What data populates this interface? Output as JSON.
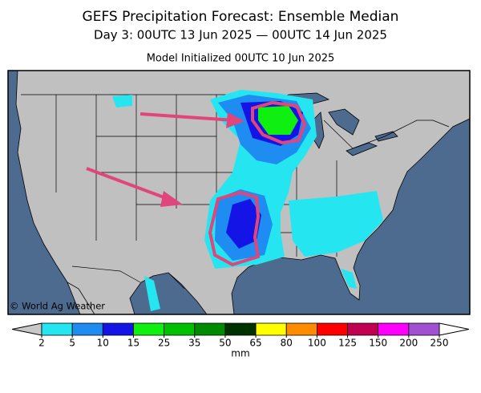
{
  "header": {
    "title": "GEFS Precipitation Forecast: Ensemble Median",
    "subtitle": "Day 3: 00UTC 13 Jun 2025 — 00UTC 14 Jun 2025",
    "init": "Model Initialized 00UTC 10 Jun 2025"
  },
  "map": {
    "credit": "© World Ag Weather"
  },
  "legend": {
    "levels": [
      2,
      5,
      10,
      15,
      25,
      35,
      50,
      65,
      80,
      100,
      125,
      150,
      200,
      250
    ],
    "colors": [
      "#25e6f0",
      "#1e8cf0",
      "#1414e6",
      "#10f010",
      "#00c000",
      "#008a00",
      "#003200",
      "#ffff00",
      "#ff8c00",
      "#ff0000",
      "#c00050",
      "#ff00ff",
      "#a050d0"
    ],
    "below_color": "#c8c8c8",
    "above_color": "#ffffff",
    "unit": "mm"
  }
}
